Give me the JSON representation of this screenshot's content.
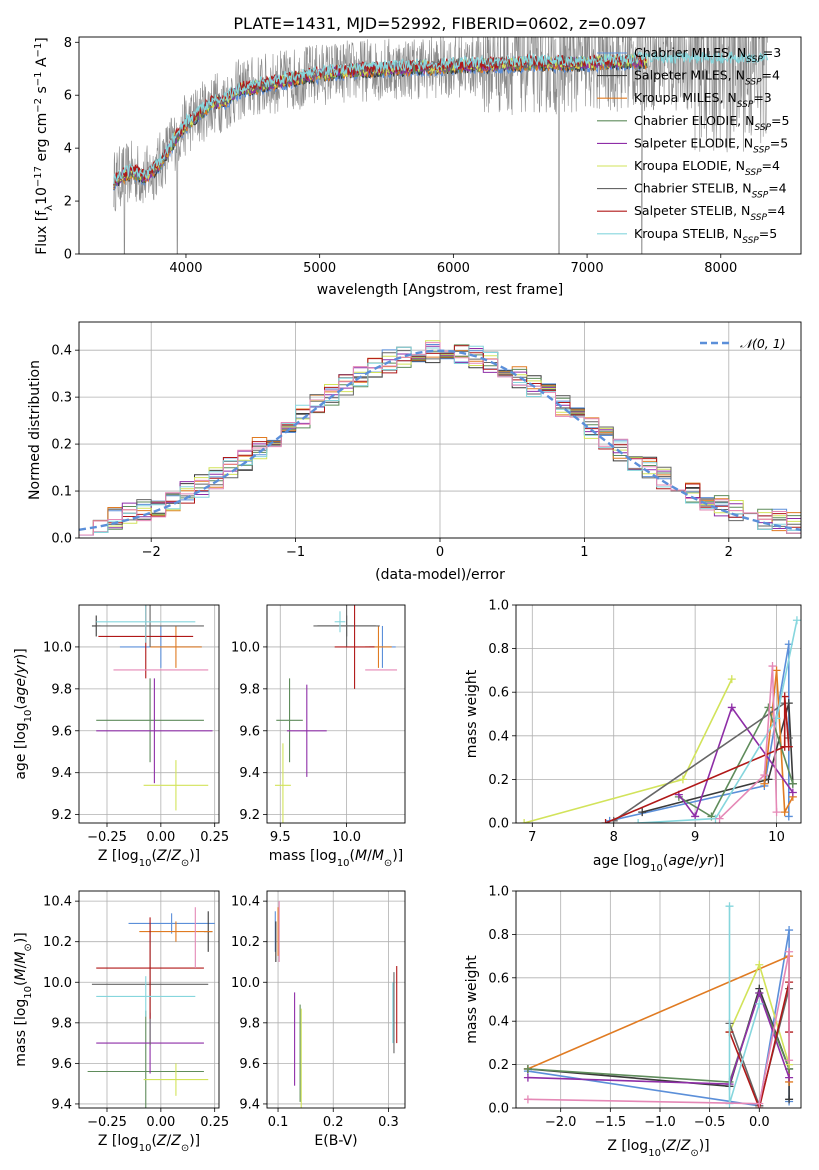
{
  "figure_title": "PLATE=1431, MJD=52992, FIBERID=0602, z=0.097",
  "colors": {
    "Chabrier MILES": "#5b8fd9",
    "Salpeter MILES": "#3a3a3a",
    "Kroupa MILES": "#e07b22",
    "Chabrier ELODIE": "#5f8c5b",
    "Salpeter ELODIE": "#8e2ea7",
    "Kroupa ELODIE": "#d2e35a",
    "Chabrier STELIB": "#666666",
    "Salpeter STELIB": "#b01818",
    "Kroupa STELIB": "#86d6dd",
    "pink_extra": "#e588b6",
    "data": "#8a8a8a"
  },
  "chart_data": [
    {
      "id": "spectrum",
      "type": "line",
      "title": "PLATE=1431, MJD=52992, FIBERID=0602, z=0.097",
      "xlabel": "wavelength [Angstrom, rest frame]",
      "ylabel": "Flux [f_λ 10^-17 erg cm^-2 s^-1 A^-1]",
      "ylabel_parts": [
        "Flux [f",
        "λ",
        "10",
        "−17",
        " erg cm",
        "−2",
        " s",
        "−1",
        " A",
        "−1",
        "]"
      ],
      "xlim": [
        3200,
        8600
      ],
      "ylim": [
        0,
        8.2
      ],
      "xticks": [
        4000,
        5000,
        6000,
        7000,
        8000
      ],
      "yticks": [
        0,
        2,
        4,
        6,
        8
      ],
      "grid": false,
      "legend": "right",
      "continuum": {
        "x": [
          3450,
          3500,
          3600,
          3700,
          3800,
          3900,
          4000,
          4100,
          4200,
          4300,
          4400,
          4500,
          4600,
          4800,
          5000,
          5200,
          5500,
          5800,
          6000,
          6300,
          6600,
          6900,
          7200,
          7400
        ],
        "y": [
          2.7,
          2.9,
          3.1,
          2.9,
          3.4,
          4.2,
          4.9,
          5.3,
          5.7,
          5.8,
          6.2,
          6.3,
          6.4,
          6.6,
          6.8,
          6.9,
          7.0,
          7.05,
          7.1,
          7.15,
          7.2,
          7.2,
          7.25,
          7.3
        ]
      },
      "series": [
        {
          "name": "Chabrier MILES",
          "ssp": "3",
          "color": "#5b8fd9",
          "style": "solid"
        },
        {
          "name": "Salpeter MILES",
          "ssp": "4",
          "color": "#3a3a3a",
          "style": "solid"
        },
        {
          "name": "Kroupa MILES",
          "ssp": "3",
          "color": "#e07b22",
          "style": "solid"
        },
        {
          "name": "Chabrier ELODIE",
          "ssp": "5",
          "color": "#5f8c5b",
          "style": "solid"
        },
        {
          "name": "Salpeter ELODIE",
          "ssp": "5",
          "color": "#8e2ea7",
          "style": "solid"
        },
        {
          "name": "Kroupa ELODIE",
          "ssp": "4",
          "color": "#d2e35a",
          "style": "solid"
        },
        {
          "name": "Chabrier STELIB",
          "ssp": "4",
          "color": "#666666",
          "style": "solid"
        },
        {
          "name": "Salpeter STELIB",
          "ssp": "4",
          "color": "#b01818",
          "style": "solid"
        },
        {
          "name": "Kroupa STELIB",
          "ssp": "5",
          "color": "#86d6dd",
          "style": "solid"
        }
      ]
    },
    {
      "id": "residuals",
      "type": "line",
      "xlabel": "(data-model)/error",
      "ylabel": "Normed distribution",
      "xlim": [
        -2.5,
        2.5
      ],
      "ylim": [
        0,
        0.46
      ],
      "xticks": [
        -2,
        -1,
        0,
        1,
        2
      ],
      "yticks": [
        0.0,
        0.1,
        0.2,
        0.3,
        0.4
      ],
      "grid": true,
      "legend": "top-right",
      "reference": {
        "name": "N(0,1)",
        "type": "normal",
        "mean": 0,
        "sigma": 1,
        "color": "#5b8fd9",
        "style": "dashed"
      },
      "hist_bins": [
        -2.5,
        2.5,
        50
      ]
    },
    {
      "id": "age-vs-Z",
      "type": "scatter",
      "xlabel": "Z [log10(Z/Z⊙)]",
      "ylabel": "age  [log10(age/yr)]",
      "xlim": [
        -0.38,
        0.27
      ],
      "ylim": [
        9.16,
        10.2
      ],
      "xticks": [
        -0.25,
        0.0,
        0.25
      ],
      "yticks": [
        9.2,
        9.4,
        9.6,
        9.8,
        10.0
      ],
      "xticklabels": [
        "−0.25",
        "0.00",
        "0.25"
      ],
      "grid": true,
      "points": [
        {
          "series": "Chabrier MILES",
          "x": 0.0,
          "y": 10.0,
          "xerr": 0.19,
          "yerr": 0.1
        },
        {
          "series": "Salpeter MILES",
          "x": -0.3,
          "y": 10.1,
          "xerr": 0.02,
          "yerr": 0.05
        },
        {
          "series": "Kroupa MILES",
          "x": 0.07,
          "y": 10.0,
          "xerr": 0.12,
          "yerr": 0.1
        },
        {
          "series": "Chabrier ELODIE",
          "x": -0.05,
          "y": 9.65,
          "xerr": 0.25,
          "yerr": 0.2
        },
        {
          "series": "Salpeter ELODIE",
          "x": -0.03,
          "y": 9.6,
          "xerr": 0.27,
          "yerr": 0.25
        },
        {
          "series": "Kroupa ELODIE",
          "x": 0.07,
          "y": 9.34,
          "xerr": 0.15,
          "yerr": 0.12
        },
        {
          "series": "Chabrier STELIB",
          "x": -0.05,
          "y": 10.1,
          "xerr": 0.25,
          "yerr": 0.1
        },
        {
          "series": "Salpeter STELIB",
          "x": -0.07,
          "y": 10.05,
          "xerr": 0.22,
          "yerr": 0.2
        },
        {
          "series": "Kroupa STELIB",
          "x": -0.07,
          "y": 10.12,
          "xerr": 0.23,
          "yerr": 0.1
        },
        {
          "series": "pink_extra",
          "x": 0.0,
          "y": 9.89,
          "xerr": 0.22,
          "yerr": 0.0
        }
      ]
    },
    {
      "id": "age-vs-mass",
      "type": "scatter",
      "xlabel": "mass [log10(M/M⊙)]",
      "xlim": [
        9.4,
        10.44
      ],
      "ylim": [
        9.16,
        10.2
      ],
      "xticks": [
        9.5,
        10.0
      ],
      "yticks": [
        9.2,
        9.4,
        9.6,
        9.8,
        10.0
      ],
      "grid": true,
      "points": [
        {
          "series": "Chabrier MILES",
          "x": 10.27,
          "y": 10.0,
          "xerr": 0.1,
          "yerr": 0.1
        },
        {
          "series": "Salpeter MILES",
          "x": 10.0,
          "y": 10.1,
          "xerr": 0.22,
          "yerr": 0.05
        },
        {
          "series": "Kroupa MILES",
          "x": 10.24,
          "y": 10.0,
          "xerr": 0.1,
          "yerr": 0.1
        },
        {
          "series": "Chabrier ELODIE",
          "x": 9.57,
          "y": 9.65,
          "xerr": 0.1,
          "yerr": 0.2
        },
        {
          "series": "Salpeter ELODIE",
          "x": 9.7,
          "y": 9.6,
          "xerr": 0.15,
          "yerr": 0.22
        },
        {
          "series": "Kroupa ELODIE",
          "x": 9.52,
          "y": 9.34,
          "xerr": 0.06,
          "yerr": 0.2
        },
        {
          "series": "Chabrier STELIB",
          "x": 10.0,
          "y": 10.1,
          "xerr": 0.25,
          "yerr": 0.1
        },
        {
          "series": "Salpeter STELIB",
          "x": 10.06,
          "y": 10.0,
          "xerr": 0.15,
          "yerr": 0.2
        },
        {
          "series": "Kroupa STELIB",
          "x": 9.95,
          "y": 10.12,
          "xerr": 0.04,
          "yerr": 0.05
        },
        {
          "series": "pink_extra",
          "x": 10.26,
          "y": 9.89,
          "xerr": 0.12,
          "yerr": 0.0
        }
      ]
    },
    {
      "id": "massweight-vs-age",
      "type": "line",
      "xlabel": "age  [log10(age/yr)]",
      "ylabel": "mass weight",
      "xlim": [
        6.8,
        10.3
      ],
      "ylim": [
        0,
        1.0
      ],
      "xticks": [
        7,
        8,
        9,
        10
      ],
      "yticks": [
        0.0,
        0.2,
        0.4,
        0.6,
        0.8,
        1.0
      ],
      "grid": true,
      "series": [
        {
          "name": "Chabrier MILES",
          "color": "#5b8fd9",
          "x": [
            7.95,
            9.85,
            10.15,
            10.15
          ],
          "y": [
            0.01,
            0.17,
            0.82,
            0.03
          ]
        },
        {
          "name": "Salpeter MILES",
          "color": "#3a3a3a",
          "x": [
            8.35,
            9.9,
            10.15,
            10.2
          ],
          "y": [
            0.05,
            0.2,
            0.55,
            0.18
          ]
        },
        {
          "name": "Kroupa MILES",
          "color": "#e07b22",
          "x": [
            9.85,
            10.0,
            10.1,
            10.2
          ],
          "y": [
            0.18,
            0.7,
            0.05,
            0.12
          ]
        },
        {
          "name": "Chabrier ELODIE",
          "color": "#5f8c5b",
          "x": [
            8.8,
            9.2,
            9.9,
            10.2
          ],
          "y": [
            0.12,
            0.03,
            0.53,
            0.18
          ]
        },
        {
          "name": "Salpeter ELODIE",
          "color": "#8e2ea7",
          "x": [
            8.8,
            9.0,
            9.45,
            10.2
          ],
          "y": [
            0.13,
            0.03,
            0.53,
            0.14
          ]
        },
        {
          "name": "Kroupa ELODIE",
          "color": "#d2e35a",
          "x": [
            6.9,
            8.85,
            9.45
          ],
          "y": [
            0.0,
            0.2,
            0.66
          ]
        },
        {
          "name": "Chabrier STELIB",
          "color": "#666666",
          "x": [
            8.0,
            10.1,
            10.15
          ],
          "y": [
            0.01,
            0.55,
            0.39
          ]
        },
        {
          "name": "Salpeter STELIB",
          "color": "#b01818",
          "x": [
            7.9,
            10.1,
            10.1,
            10.15
          ],
          "y": [
            0.0,
            0.35,
            0.58,
            0.35
          ]
        },
        {
          "name": "Kroupa STELIB",
          "color": "#86d6dd",
          "x": [
            8.3,
            9.25,
            10.0,
            10.25
          ],
          "y": [
            0.0,
            0.02,
            0.48,
            0.93
          ]
        },
        {
          "name": "pink_extra",
          "color": "#e588b6",
          "x": [
            9.3,
            9.85,
            9.95,
            10.0
          ],
          "y": [
            0.02,
            0.22,
            0.72,
            0.05
          ]
        }
      ]
    },
    {
      "id": "mass-vs-Z",
      "type": "scatter",
      "xlabel": "Z [log10(Z/Z⊙)]",
      "ylabel": "mass [log10(M/M⊙)]",
      "xlim": [
        -0.38,
        0.27
      ],
      "ylim": [
        9.38,
        10.45
      ],
      "xticks": [
        -0.25,
        0.0,
        0.25
      ],
      "yticks": [
        9.4,
        9.6,
        9.8,
        10.0,
        10.2,
        10.4
      ],
      "xticklabels": [
        "−0.25",
        "0.00",
        "0.25"
      ],
      "grid": true,
      "points": [
        {
          "series": "Chabrier MILES",
          "x": 0.05,
          "y": 10.29,
          "xerr": 0.2,
          "yerr": 0.05
        },
        {
          "series": "Salpeter MILES",
          "x": 0.22,
          "y": 10.25,
          "xerr": 0.02,
          "yerr": 0.1
        },
        {
          "series": "Kroupa MILES",
          "x": 0.07,
          "y": 10.25,
          "xerr": 0.17,
          "yerr": 0.05
        },
        {
          "series": "Chabrier ELODIE",
          "x": -0.07,
          "y": 9.56,
          "xerr": 0.27,
          "yerr": 0.3
        },
        {
          "series": "Salpeter ELODIE",
          "x": -0.05,
          "y": 9.7,
          "xerr": 0.25,
          "yerr": 0.15
        },
        {
          "series": "Kroupa ELODIE",
          "x": 0.07,
          "y": 9.52,
          "xerr": 0.15,
          "yerr": 0.08
        },
        {
          "series": "Chabrier STELIB",
          "x": -0.05,
          "y": 9.99,
          "xerr": 0.27,
          "yerr": 0.3
        },
        {
          "series": "Salpeter STELIB",
          "x": -0.05,
          "y": 10.07,
          "xerr": 0.25,
          "yerr": 0.25
        },
        {
          "series": "Kroupa STELIB",
          "x": -0.07,
          "y": 9.93,
          "xerr": 0.23,
          "yerr": 0.1
        },
        {
          "series": "pink_extra",
          "x": 0.16,
          "y": 10.22,
          "xerr": 0.0,
          "yerr": 0.15
        }
      ]
    },
    {
      "id": "mass-vs-EBV",
      "type": "scatter",
      "xlabel": "E(B-V)",
      "xlim": [
        0.08,
        0.33
      ],
      "ylim": [
        9.38,
        10.45
      ],
      "xticks": [
        0.1,
        0.2,
        0.3
      ],
      "yticks": [
        9.4,
        9.6,
        9.8,
        10.0,
        10.2,
        10.4
      ],
      "grid": true,
      "points": [
        {
          "series": "Chabrier MILES",
          "x": 0.095,
          "y": 10.25,
          "xerr": 0.0,
          "yerr": 0.1
        },
        {
          "series": "Salpeter MILES",
          "x": 0.096,
          "y": 10.2,
          "xerr": 0.0,
          "yerr": 0.1
        },
        {
          "series": "Kroupa MILES",
          "x": 0.1,
          "y": 10.25,
          "xerr": 0.0,
          "yerr": 0.12
        },
        {
          "series": "pink_extra",
          "x": 0.102,
          "y": 10.25,
          "xerr": 0.0,
          "yerr": 0.15
        },
        {
          "series": "Salpeter ELODIE",
          "x": 0.13,
          "y": 9.72,
          "xerr": 0.0,
          "yerr": 0.23
        },
        {
          "series": "Chabrier ELODIE",
          "x": 0.14,
          "y": 9.65,
          "xerr": 0.0,
          "yerr": 0.24
        },
        {
          "series": "Kroupa ELODIE",
          "x": 0.142,
          "y": 9.62,
          "xerr": 0.0,
          "yerr": 0.25
        },
        {
          "series": "Kroupa STELIB",
          "x": 0.308,
          "y": 9.85,
          "xerr": 0.0,
          "yerr": 0.15
        },
        {
          "series": "Chabrier STELIB",
          "x": 0.31,
          "y": 9.85,
          "xerr": 0.0,
          "yerr": 0.2
        },
        {
          "series": "Salpeter STELIB",
          "x": 0.315,
          "y": 9.89,
          "xerr": 0.0,
          "yerr": 0.19
        }
      ]
    },
    {
      "id": "massweight-vs-Z",
      "type": "line",
      "xlabel": "Z [log10(Z/Z⊙)]",
      "ylabel": "mass weight",
      "xlim": [
        -2.45,
        0.42
      ],
      "ylim": [
        0,
        1.0
      ],
      "xticks": [
        -2.0,
        -1.5,
        -1.0,
        -0.5,
        0.0
      ],
      "yticks": [
        0.0,
        0.2,
        0.4,
        0.6,
        0.8,
        1.0
      ],
      "xticklabels": [
        "−2.0",
        "−1.5",
        "−1.0",
        "−0.5",
        "0.0"
      ],
      "grid": true,
      "series": [
        {
          "name": "Chabrier MILES",
          "color": "#5b8fd9",
          "x": [
            -2.33,
            0.0,
            0.3,
            0.3
          ],
          "y": [
            0.17,
            0.01,
            0.82,
            0.03
          ]
        },
        {
          "name": "Salpeter MILES",
          "color": "#3a3a3a",
          "x": [
            -2.33,
            -0.3,
            0.0,
            0.3,
            0.3
          ],
          "y": [
            0.18,
            0.1,
            0.55,
            0.18,
            0.04
          ]
        },
        {
          "name": "Kroupa MILES",
          "color": "#e07b22",
          "x": [
            -2.33,
            0.3,
            0.3
          ],
          "y": [
            0.18,
            0.7,
            0.12
          ]
        },
        {
          "name": "Chabrier ELODIE",
          "color": "#5f8c5b",
          "x": [
            -2.33,
            -0.3,
            0.0,
            0.3
          ],
          "y": [
            0.18,
            0.12,
            0.53,
            0.18
          ]
        },
        {
          "name": "Salpeter ELODIE",
          "color": "#8e2ea7",
          "x": [
            -2.33,
            -0.3,
            0.0,
            0.3
          ],
          "y": [
            0.14,
            0.11,
            0.53,
            0.14
          ]
        },
        {
          "name": "Kroupa ELODIE",
          "color": "#d2e35a",
          "x": [
            -0.3,
            0.0,
            0.3
          ],
          "y": [
            0.35,
            0.66,
            0.2
          ]
        },
        {
          "name": "Chabrier STELIB",
          "color": "#666666",
          "x": [
            -0.3,
            0.0,
            0.3
          ],
          "y": [
            0.39,
            0.01,
            0.55
          ]
        },
        {
          "name": "Salpeter STELIB",
          "color": "#b01818",
          "x": [
            -0.3,
            0.0,
            0.3,
            0.3
          ],
          "y": [
            0.35,
            0.0,
            0.58,
            0.35
          ]
        },
        {
          "name": "Kroupa STELIB",
          "color": "#86d6dd",
          "x": [
            -0.3,
            -0.3,
            0.0
          ],
          "y": [
            0.93,
            0.02,
            0.48
          ]
        },
        {
          "name": "pink_extra",
          "color": "#e588b6",
          "x": [
            -2.33,
            0.0,
            0.3,
            0.3
          ],
          "y": [
            0.04,
            0.02,
            0.72,
            0.22
          ]
        }
      ]
    }
  ]
}
